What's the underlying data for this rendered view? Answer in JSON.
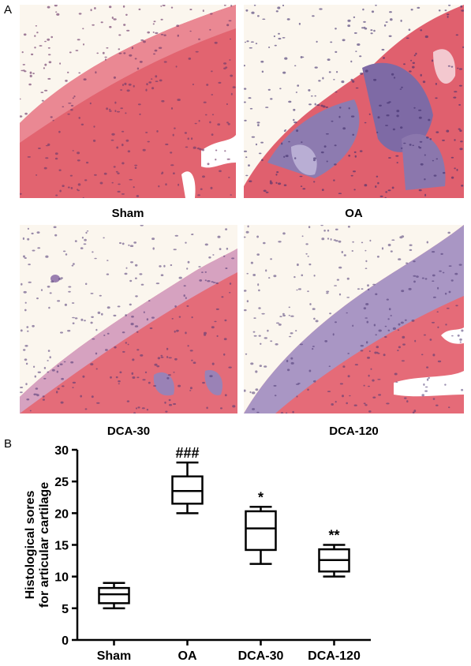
{
  "panel_a_label": "A",
  "panel_b_label": "B",
  "micrographs": [
    {
      "label": "Sham"
    },
    {
      "label": "OA"
    },
    {
      "label": "DCA-30"
    },
    {
      "label": "DCA-120"
    }
  ],
  "colors": {
    "eosin": "#e4626e",
    "eosin_light": "#ee97a0",
    "hematoxylin": "#7f6fa6",
    "background": "#fbf6ee"
  },
  "chart_data": {
    "type": "box",
    "ylabel_lines": [
      "Histological sores",
      "for articular cartilage"
    ],
    "ylim": [
      0,
      30
    ],
    "yticks": [
      0,
      5,
      10,
      15,
      20,
      25,
      30
    ],
    "categories": [
      "Sham",
      "OA",
      "DCA-30",
      "DCA-120"
    ],
    "boxes": [
      {
        "min": 5,
        "q1": 5.8,
        "median": 7.2,
        "q3": 8.2,
        "max": 9,
        "annotation": ""
      },
      {
        "min": 20,
        "q1": 21.5,
        "median": 23.5,
        "q3": 25.8,
        "max": 28,
        "annotation": "###"
      },
      {
        "min": 12,
        "q1": 14.2,
        "median": 17.6,
        "q3": 20.3,
        "max": 21,
        "annotation": "*"
      },
      {
        "min": 10,
        "q1": 10.8,
        "median": 12.6,
        "q3": 14.3,
        "max": 15,
        "annotation": "**"
      }
    ],
    "grid": false
  }
}
